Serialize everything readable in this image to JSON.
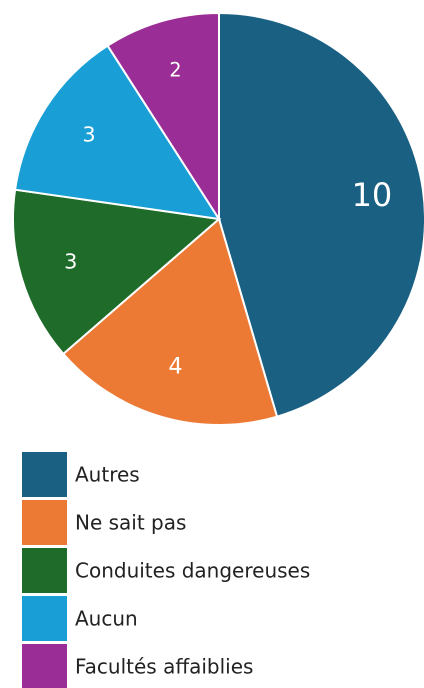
{
  "chart_data": {
    "type": "pie",
    "categories": [
      "Autres",
      "Ne sait pas",
      "Conduites dangereuses",
      "Aucun",
      "Facultés affaiblies"
    ],
    "values": [
      10,
      4,
      3,
      3,
      2
    ],
    "colors": [
      "#1a6083",
      "#ec7a35",
      "#1e6b2a",
      "#199fd6",
      "#9b2d96"
    ],
    "legend": "bottom"
  }
}
